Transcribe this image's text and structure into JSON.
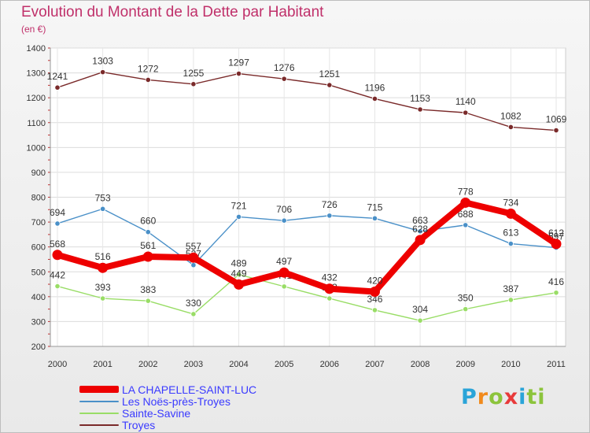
{
  "header": {
    "title": "Evolution du Montant de la Dette par Habitant",
    "subtitle": "(en €)"
  },
  "logo": {
    "text": "Proxiti",
    "letters": [
      "P",
      "r",
      "o",
      "x",
      "i",
      "ti"
    ]
  },
  "chart_data": {
    "type": "line",
    "x": [
      "2000",
      "2001",
      "2002",
      "2003",
      "2004",
      "2005",
      "2006",
      "2007",
      "2008",
      "2009",
      "2010",
      "2011"
    ],
    "ylim": [
      200,
      1400
    ],
    "yticks": [
      200,
      300,
      400,
      500,
      600,
      700,
      800,
      900,
      1000,
      1100,
      1200,
      1300,
      1400
    ],
    "grid": true,
    "legend_position": "bottom-left",
    "series": [
      {
        "name": "LA CHAPELLE-SAINT-LUC",
        "color": "#ee0000",
        "values": [
          568,
          516,
          561,
          557,
          449,
          497,
          432,
          420,
          628,
          778,
          734,
          612
        ],
        "labels": [
          "568",
          "516",
          "561",
          "557",
          "449",
          "497",
          "432",
          "420",
          "628",
          "778",
          "734",
          "612"
        ]
      },
      {
        "name": "Les Noës-près-Troyes",
        "color": "#4a90c8",
        "values": [
          694,
          753,
          660,
          527,
          721,
          706,
          726,
          715,
          663,
          688,
          613,
          597
        ],
        "labels": [
          "694",
          "753",
          "660",
          "527",
          "721",
          "706",
          "726",
          "715",
          "663",
          "688",
          "613",
          "597"
        ]
      },
      {
        "name": "Sainte-Savine",
        "color": "#99dd66",
        "values": [
          442,
          393,
          383,
          330,
          489,
          441,
          393,
          346,
          304,
          350,
          387,
          416
        ],
        "labels": [
          "442",
          "393",
          "383",
          "330",
          "489",
          "441",
          "393",
          "346",
          "304",
          "350",
          "387",
          "416"
        ]
      },
      {
        "name": "Troyes",
        "color": "#7a2a2a",
        "values": [
          1241,
          1303,
          1272,
          1255,
          1297,
          1276,
          1251,
          1196,
          1153,
          1140,
          1082,
          1069
        ],
        "labels": [
          "1241",
          "1303",
          "1272",
          "1255",
          "1297",
          "1276",
          "1251",
          "1196",
          "1153",
          "1140",
          "1082",
          "1069"
        ]
      }
    ]
  }
}
